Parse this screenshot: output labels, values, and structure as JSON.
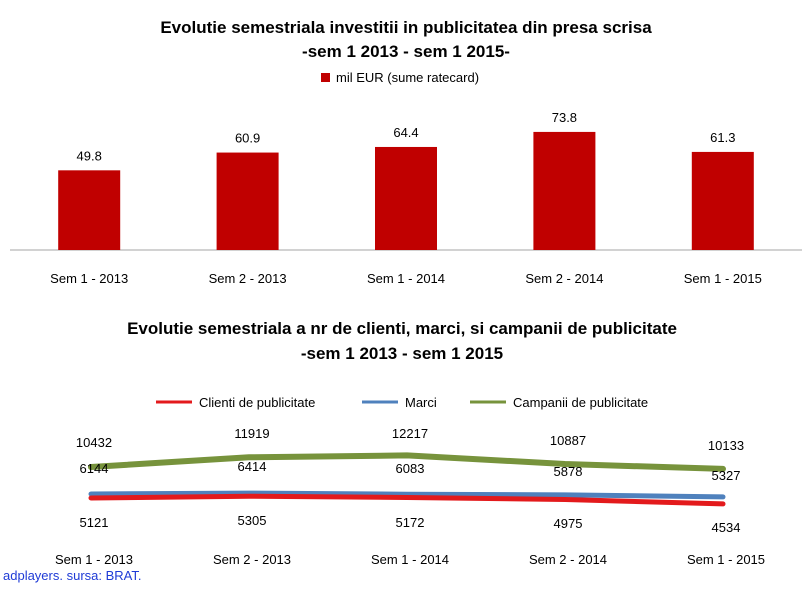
{
  "credit": "adplayers. sursa: BRAT.",
  "chart_data": [
    {
      "type": "bar",
      "title": "Evolutie semestriala investitii in publicitatea din presa scrisa",
      "subtitle": "-sem 1 2013 - sem 1 2015-",
      "categories": [
        "Sem 1 - 2013",
        "Sem 2 - 2013",
        "Sem 1 - 2014",
        "Sem 2 - 2014",
        "Sem 1 - 2015"
      ],
      "series": [
        {
          "name": "mil EUR (sume ratecard)",
          "values": [
            49.8,
            60.9,
            64.4,
            73.8,
            61.3
          ],
          "color": "#c00000"
        }
      ],
      "value_labels": [
        "49.8",
        "60.9",
        "64.4",
        "73.8",
        "61.3"
      ],
      "ylim": [
        0,
        80
      ],
      "grid": false,
      "legend_position": "top"
    },
    {
      "type": "line",
      "title": "Evolutie semestriala a nr de clienti, marci, si campanii de publicitate",
      "subtitle": "-sem 1 2013 - sem 1 2015",
      "categories": [
        "Sem 1 - 2013",
        "Sem 2 - 2013",
        "Sem 1 - 2014",
        "Sem 2 - 2014",
        "Sem 1 - 2015"
      ],
      "series": [
        {
          "name": "Clienti de publicitate",
          "values": [
            5121,
            5305,
            5172,
            4975,
            4534
          ],
          "labels": [
            "5121",
            "5305",
            "5172",
            "4975",
            "4534"
          ],
          "color": "#e31a1c"
        },
        {
          "name": "Marci",
          "values": [
            6144,
            6414,
            6083,
            5878,
            5327
          ],
          "labels": [
            "6144",
            "6414",
            "6083",
            "5878",
            "5327"
          ],
          "color": "#4f81bd"
        },
        {
          "name": "Campanii de publicitate",
          "values": [
            10432,
            11919,
            12217,
            10887,
            10133
          ],
          "labels": [
            "10432",
            "11919",
            "12217",
            "10887",
            "10133"
          ],
          "color": "#77933c"
        }
      ],
      "grid": false,
      "legend_position": "top"
    }
  ]
}
